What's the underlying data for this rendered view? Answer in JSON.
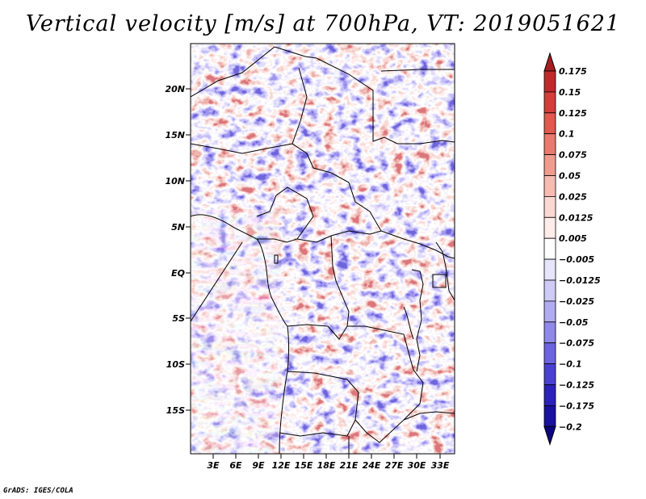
{
  "title": "Vertical velocity [m/s] at 700hPa, VT: 2019051621",
  "credit": "GrADS: IGES/COLA",
  "map": {
    "variable": "Vertical velocity",
    "units": "m/s",
    "level": "700hPa",
    "valid_time": "2019051621",
    "lat_labels": [
      "20N",
      "15N",
      "10N",
      "5N",
      "EQ",
      "5S",
      "10S",
      "15S"
    ],
    "lon_labels": [
      "3E",
      "6E",
      "9E",
      "12E",
      "15E",
      "18E",
      "21E",
      "24E",
      "27E",
      "30E",
      "33E"
    ]
  },
  "colorbar": {
    "levels": [
      "0.175",
      "0.15",
      "0.125",
      "0.1",
      "0.075",
      "0.05",
      "0.025",
      "0.0125",
      "0.005",
      "−0.005",
      "−0.0125",
      "−0.025",
      "−0.05",
      "−0.075",
      "−0.1",
      "−0.125",
      "−0.175",
      "−0.2"
    ],
    "colors": [
      "#a51d20",
      "#be2a2c",
      "#d23e3a",
      "#e05a4e",
      "#ea7a6d",
      "#f19b8f",
      "#f7bbb1",
      "#fbd8d2",
      "#fdecea",
      "#ffffff",
      "#e7e5fb",
      "#cfcbf7",
      "#b1abf1",
      "#9089ea",
      "#6d64df",
      "#4b41cf",
      "#2c22b8",
      "#1a129d",
      "#0b0680"
    ]
  }
}
